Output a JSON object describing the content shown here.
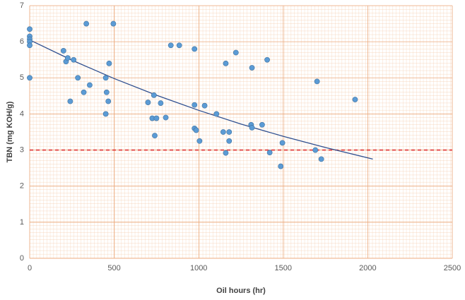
{
  "chart_data": {
    "type": "scatter",
    "x_label": "Oil hours (hr)",
    "y_label": "TBN (mg KOH/g)",
    "xlim": [
      0,
      2500
    ],
    "xticks": [
      0,
      500,
      1000,
      1500,
      2000,
      2500
    ],
    "ylim": [
      0,
      7
    ],
    "yticks": [
      0,
      1,
      2,
      3,
      4,
      5,
      6,
      7
    ],
    "grid": true,
    "color": "#5b9bd5",
    "x": [
      0,
      0,
      0,
      0,
      0,
      0,
      200,
      215,
      225,
      260,
      285,
      320,
      240,
      335,
      355,
      470,
      495,
      450,
      455,
      465,
      450,
      700,
      735,
      775,
      725,
      750,
      805,
      740,
      835,
      885,
      975,
      975,
      1035,
      975,
      985,
      1005,
      1105,
      1145,
      1160,
      1220,
      1160,
      1180,
      1180,
      1310,
      1315,
      1315,
      1405,
      1375,
      1420,
      1495,
      1485,
      1690,
      1700,
      1725,
      1925
    ],
    "values": [
      6.35,
      6.15,
      6.07,
      6.0,
      5.9,
      5.0,
      5.75,
      5.45,
      5.55,
      5.5,
      5.0,
      4.6,
      4.35,
      6.5,
      4.8,
      5.4,
      6.5,
      5.0,
      4.6,
      4.35,
      4.0,
      4.32,
      4.52,
      4.3,
      3.88,
      3.88,
      3.9,
      3.4,
      5.9,
      5.9,
      5.8,
      4.25,
      4.23,
      3.6,
      3.55,
      3.25,
      4.0,
      3.5,
      5.4,
      5.7,
      2.92,
      3.5,
      3.25,
      3.7,
      3.62,
      5.28,
      5.5,
      3.7,
      2.93,
      3.2,
      2.55,
      3.0,
      4.9,
      2.75,
      4.4
    ],
    "trendline": {
      "color": "#2f4f8f",
      "x": [
        0,
        250,
        500,
        750,
        1000,
        1250,
        1500,
        1750,
        2030
      ],
      "values": [
        6.05,
        5.49,
        4.98,
        4.52,
        4.1,
        3.72,
        3.38,
        3.07,
        2.75
      ]
    },
    "threshold": {
      "value": 3,
      "color": "#e03030"
    }
  }
}
